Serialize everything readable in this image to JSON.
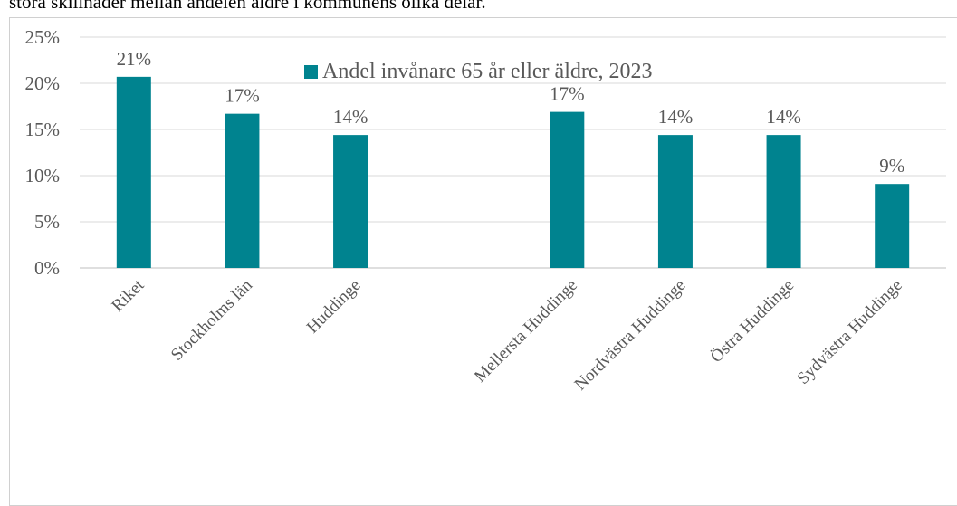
{
  "page": {
    "top_text": "stora skillnader mellan andelen äldre i kommunens olika delar."
  },
  "chart_data": {
    "type": "bar",
    "categories": [
      "Riket",
      "Stockholms län",
      "Huddinge",
      "",
      "Mellersta Huddinge",
      "Nordvästra Huddinge",
      "Östra Huddinge",
      "Sydvästra Huddinge"
    ],
    "series": [
      {
        "name": "Andel invånare 65 år eller äldre, 2023",
        "values": [
          20.7,
          16.7,
          14.4,
          null,
          16.9,
          14.4,
          14.4,
          9.1
        ],
        "labels": [
          "21%",
          "17%",
          "14%",
          "",
          "17%",
          "14%",
          "14%",
          "9%"
        ]
      }
    ],
    "ylim": [
      0,
      25
    ],
    "yticks": [
      0,
      5,
      10,
      15,
      20,
      25
    ],
    "ytick_labels": [
      "0%",
      "5%",
      "10%",
      "15%",
      "20%",
      "25%"
    ],
    "grid": true,
    "legend_position": "top",
    "colors": {
      "bar": "#00838F",
      "grid": "#d9d9d9",
      "axis": "#bfbfbf"
    }
  }
}
